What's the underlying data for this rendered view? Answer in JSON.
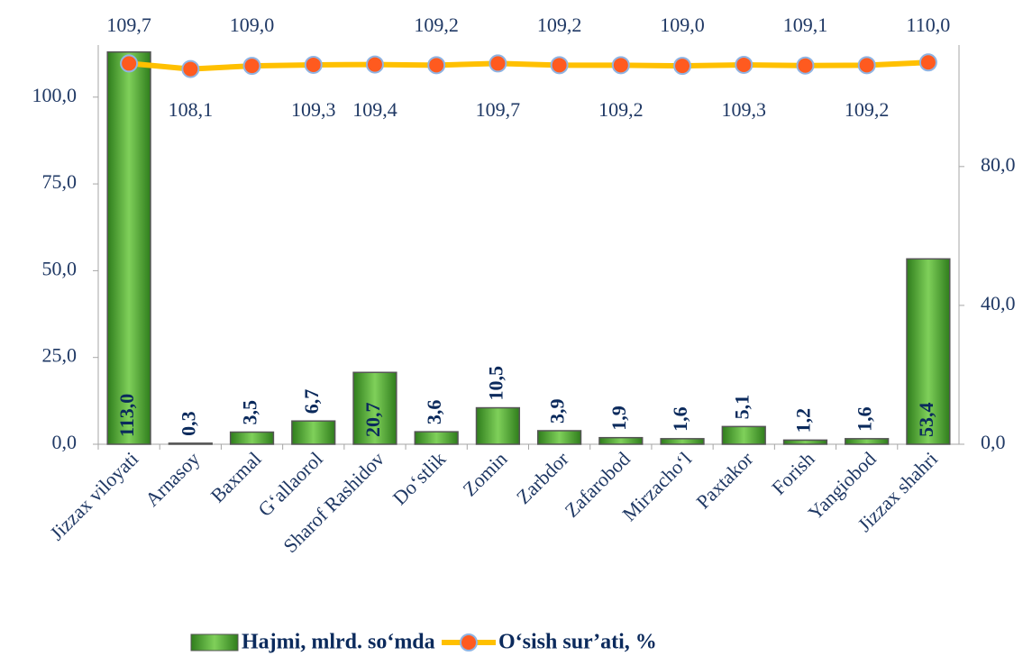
{
  "chart_data": {
    "type": "bar_line",
    "categories": [
      "Jizzax viloyati",
      "Arnasoy",
      "Baxmal",
      "G‘allaorol",
      "Sharof Rashidov",
      "Do‘stlik",
      "Zomin",
      "Zarbdor",
      "Zafarobod",
      "Mirzacho‘l",
      "Paxtakor",
      "Forish",
      "Yangiobod",
      "Jizzax shahri"
    ],
    "series": [
      {
        "name": "Hajmi, mlrd. so‘mda",
        "type": "bar",
        "color": "#4ea72e",
        "values": [
          113.0,
          0.3,
          3.5,
          6.7,
          20.7,
          3.6,
          10.5,
          3.9,
          1.9,
          1.6,
          5.1,
          1.2,
          1.6,
          53.4
        ],
        "value_labels": [
          "113,0",
          "0,3",
          "3,5",
          "6,7",
          "20,7",
          "3,6",
          "10,5",
          "3,9",
          "1,9",
          "1,6",
          "5,1",
          "1,2",
          "1,6",
          "53,4"
        ]
      },
      {
        "name": "O‘sish sur’ati, %",
        "type": "line",
        "axis": "y2",
        "color": "#ffc000",
        "marker_color": "#ff5a1f",
        "values": [
          109.7,
          108.1,
          109.0,
          109.3,
          109.4,
          109.2,
          109.7,
          109.2,
          109.2,
          109.0,
          109.3,
          109.1,
          109.2,
          110.0
        ],
        "value_labels": [
          "109,7",
          "108,1",
          "109,0",
          "109,3",
          "109,4",
          "109,2",
          "109,7",
          "109,2",
          "109,2",
          "109,0",
          "109,3",
          "109,1",
          "109,2",
          "110,0"
        ]
      }
    ],
    "ylim": [
      0,
      115
    ],
    "yticks": [
      {
        "value": 0,
        "label": "0,0"
      },
      {
        "value": 25,
        "label": "25,0"
      },
      {
        "value": 50,
        "label": "50,0"
      },
      {
        "value": 75,
        "label": "75,0"
      },
      {
        "value": 100,
        "label": "100,0"
      }
    ],
    "y2lim": [
      0,
      115
    ],
    "y2ticks": [
      {
        "value": 0,
        "label": "0,0"
      },
      {
        "value": 40,
        "label": "40,0"
      },
      {
        "value": 80,
        "label": "80,0"
      }
    ],
    "legend": "bottom"
  }
}
